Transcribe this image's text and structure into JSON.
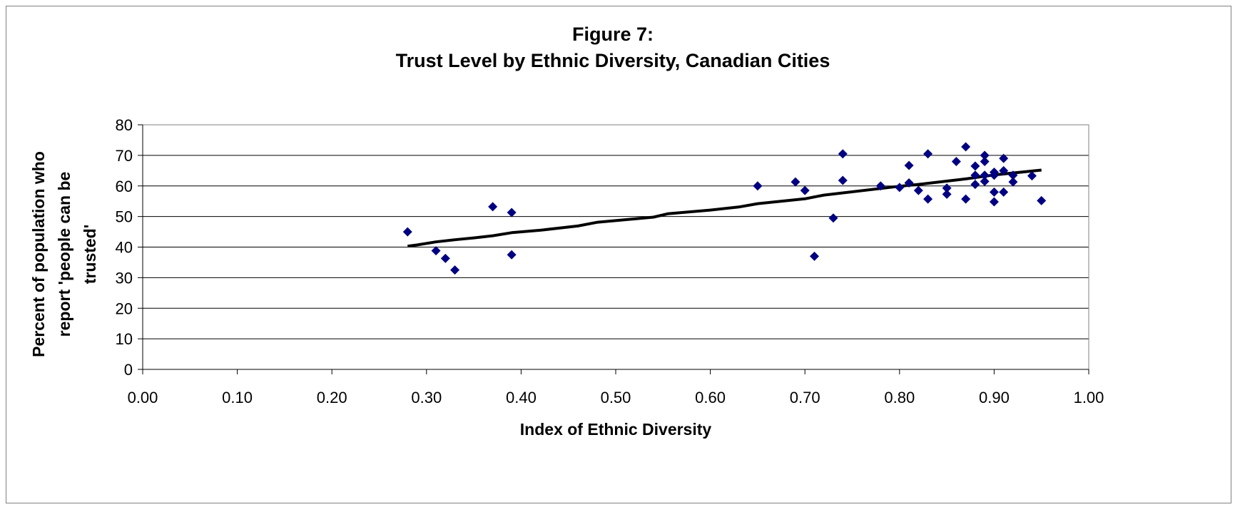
{
  "chart_data": {
    "type": "scatter",
    "title_line1": "Figure 7:",
    "title_line2": "Trust Level by Ethnic Diversity, Canadian Cities",
    "xlabel": "Index of Ethnic Diversity",
    "ylabel_lines": [
      "Percent of population who",
      "report 'people can be",
      "trusted'"
    ],
    "xlim": [
      0,
      1
    ],
    "ylim": [
      0,
      80
    ],
    "x_ticks": [
      "0.00",
      "0.10",
      "0.20",
      "0.30",
      "0.40",
      "0.50",
      "0.60",
      "0.70",
      "0.80",
      "0.90",
      "1.00"
    ],
    "y_ticks": [
      "0",
      "10",
      "20",
      "30",
      "40",
      "50",
      "60",
      "70",
      "80"
    ],
    "grid": "horizontal",
    "legend": "none",
    "marker_color": "#000080",
    "trend_color": "#000000",
    "points": [
      [
        0.28,
        45.0
      ],
      [
        0.31,
        38.8
      ],
      [
        0.32,
        36.3
      ],
      [
        0.33,
        32.5
      ],
      [
        0.37,
        53.2
      ],
      [
        0.39,
        51.3
      ],
      [
        0.39,
        37.5
      ],
      [
        0.65,
        60.0
      ],
      [
        0.69,
        61.3
      ],
      [
        0.7,
        58.5
      ],
      [
        0.71,
        37.0
      ],
      [
        0.73,
        49.5
      ],
      [
        0.74,
        70.5
      ],
      [
        0.74,
        61.8
      ],
      [
        0.78,
        60.0
      ],
      [
        0.8,
        59.5
      ],
      [
        0.81,
        66.7
      ],
      [
        0.81,
        61.0
      ],
      [
        0.82,
        58.5
      ],
      [
        0.83,
        70.5
      ],
      [
        0.83,
        55.7
      ],
      [
        0.85,
        59.3
      ],
      [
        0.85,
        57.3
      ],
      [
        0.86,
        68.0
      ],
      [
        0.87,
        72.8
      ],
      [
        0.87,
        55.7
      ],
      [
        0.88,
        66.5
      ],
      [
        0.88,
        63.5
      ],
      [
        0.88,
        60.5
      ],
      [
        0.89,
        70.0
      ],
      [
        0.89,
        68.0
      ],
      [
        0.89,
        63.5
      ],
      [
        0.89,
        61.5
      ],
      [
        0.9,
        64.5
      ],
      [
        0.9,
        63.5
      ],
      [
        0.9,
        58.0
      ],
      [
        0.9,
        54.8
      ],
      [
        0.91,
        69.0
      ],
      [
        0.91,
        65.0
      ],
      [
        0.91,
        58.0
      ],
      [
        0.92,
        63.5
      ],
      [
        0.92,
        61.3
      ],
      [
        0.94,
        63.3
      ],
      [
        0.95,
        55.2
      ]
    ],
    "trendline": [
      [
        0.28,
        40.3
      ],
      [
        0.29,
        40.7
      ],
      [
        0.31,
        41.7
      ],
      [
        0.33,
        42.4
      ],
      [
        0.35,
        43.0
      ],
      [
        0.37,
        43.7
      ],
      [
        0.39,
        44.7
      ],
      [
        0.42,
        45.5
      ],
      [
        0.46,
        46.9
      ],
      [
        0.48,
        48.1
      ],
      [
        0.54,
        49.8
      ],
      [
        0.555,
        50.9
      ],
      [
        0.6,
        52.1
      ],
      [
        0.63,
        53.1
      ],
      [
        0.65,
        54.2
      ],
      [
        0.7,
        55.8
      ],
      [
        0.72,
        57.0
      ],
      [
        0.8,
        59.9
      ],
      [
        0.82,
        60.5
      ],
      [
        0.87,
        62.3
      ],
      [
        0.9,
        63.6
      ],
      [
        0.95,
        65.2
      ]
    ]
  }
}
